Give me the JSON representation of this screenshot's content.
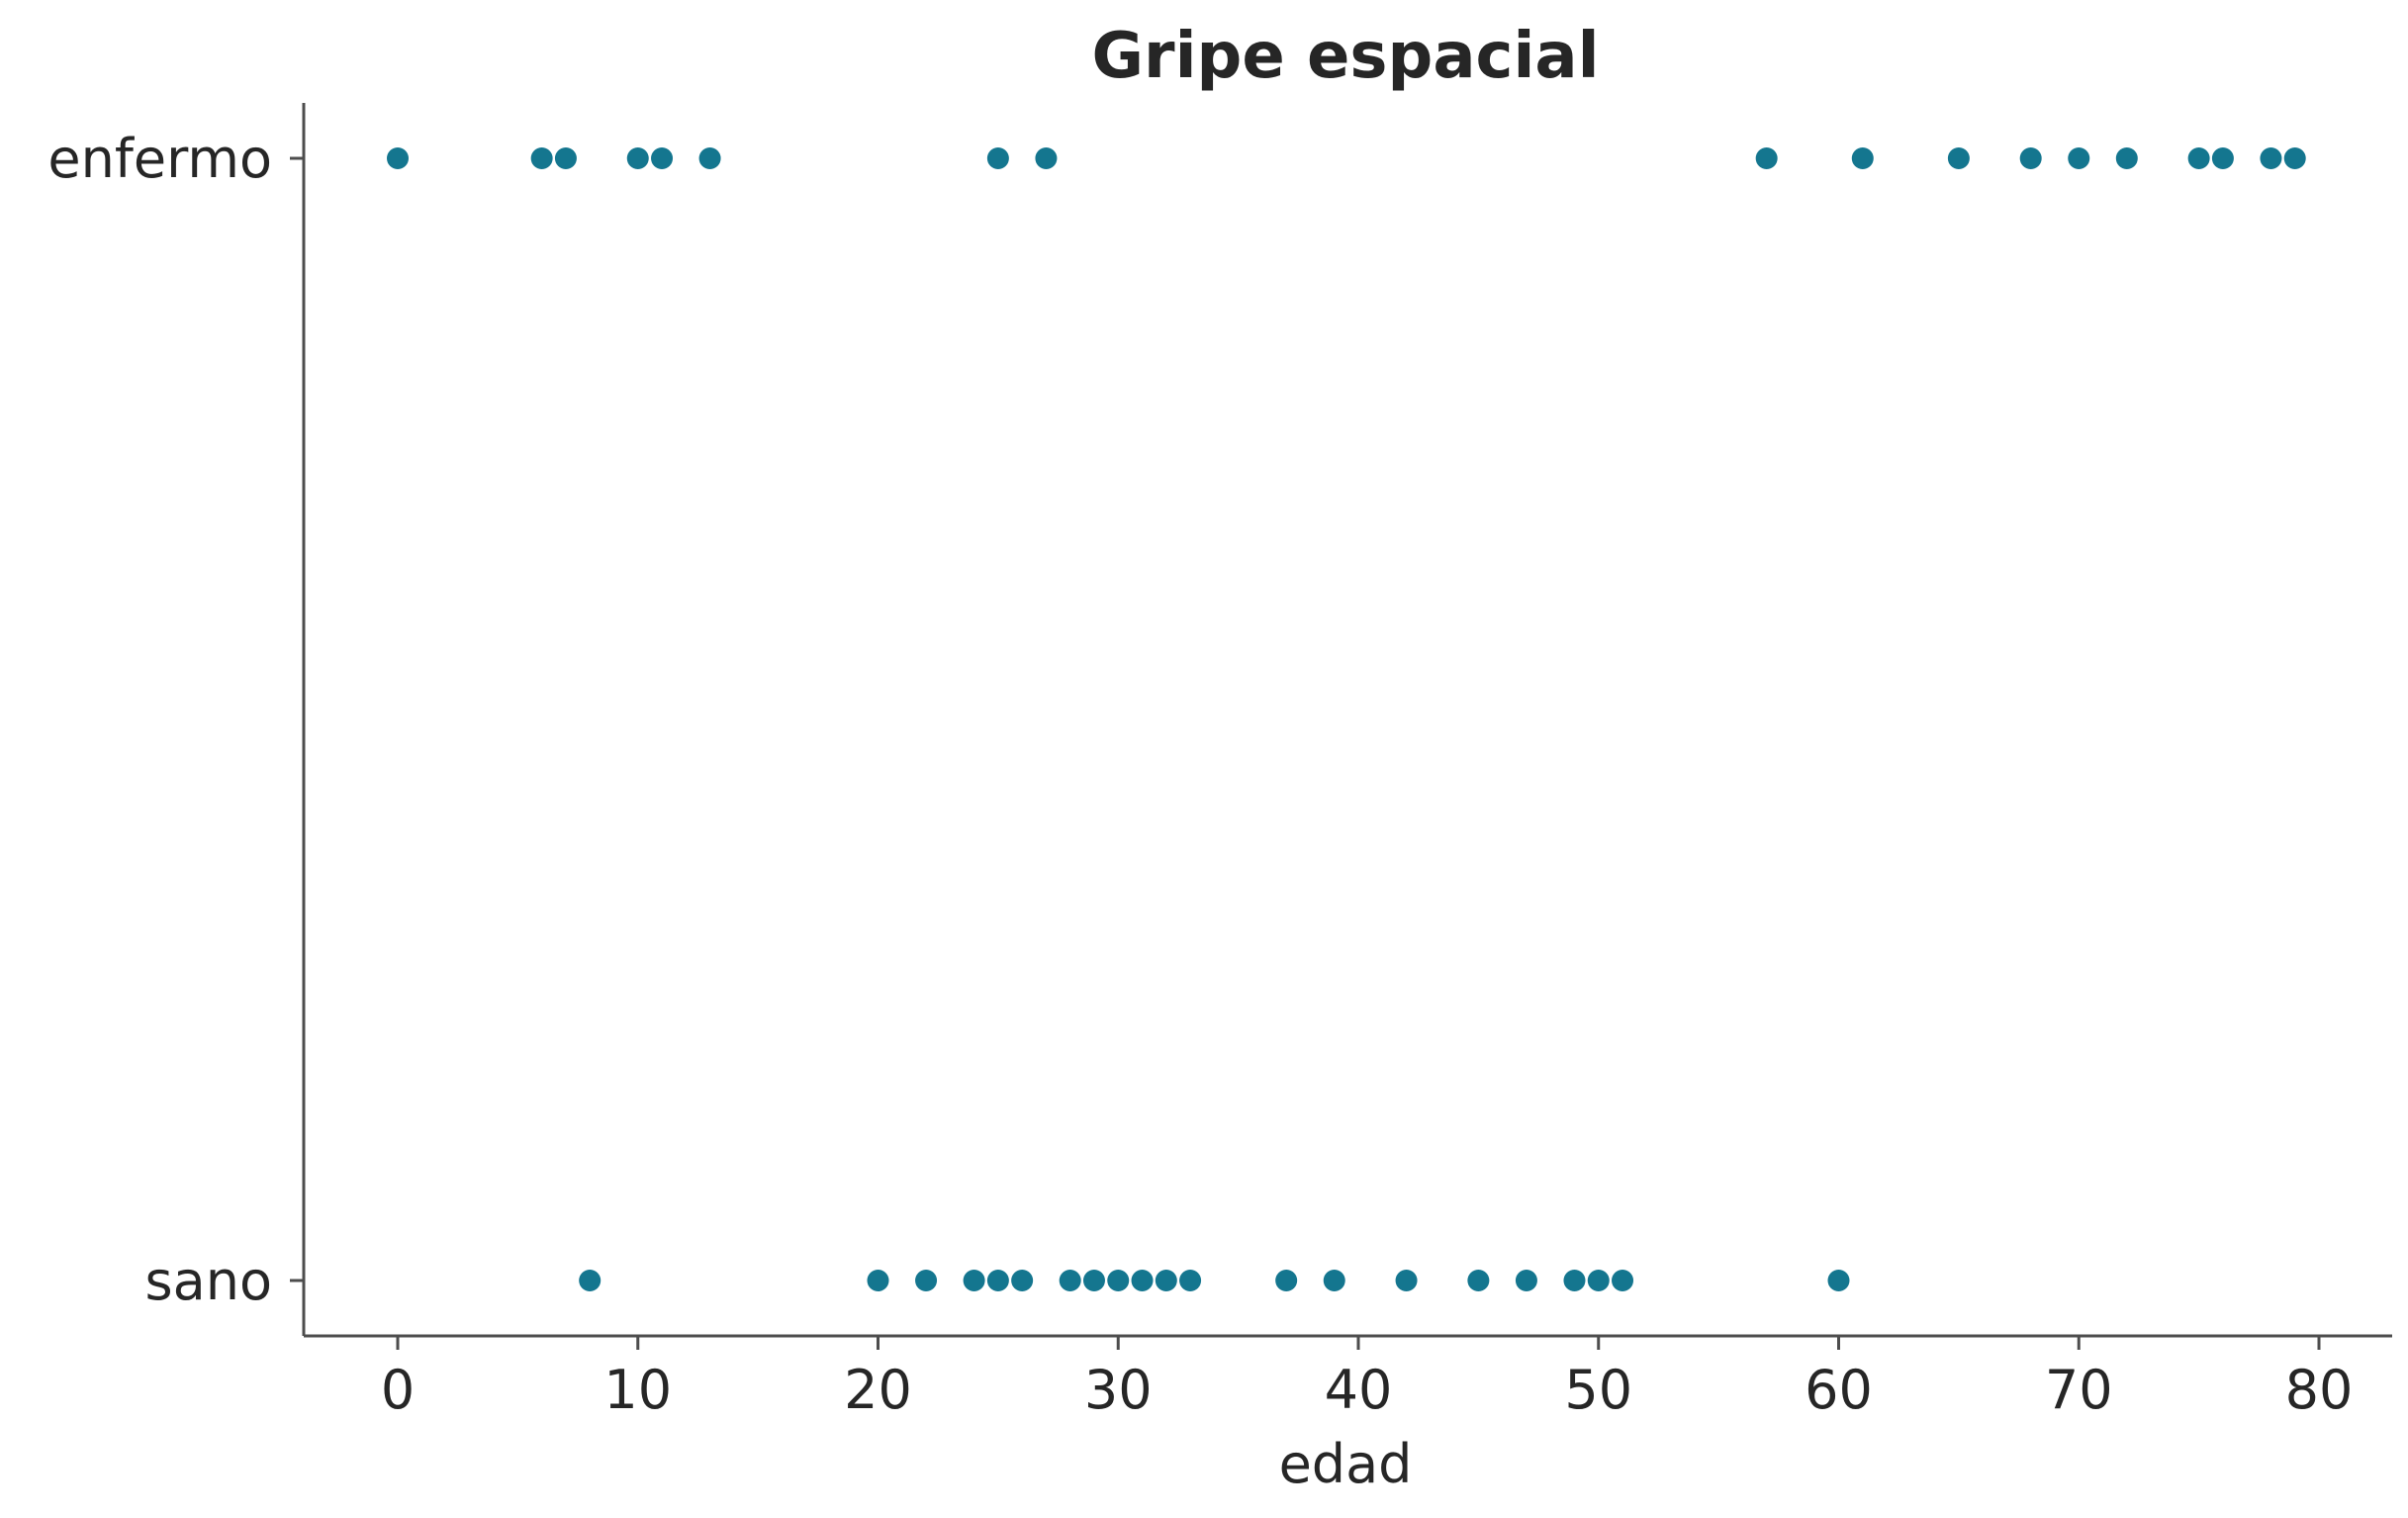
{
  "chart_data": {
    "type": "scatter",
    "title": "Gripe espacial",
    "xlabel": "edad",
    "ylabel": "",
    "xlim": [
      -4,
      83
    ],
    "xticks": [
      0,
      10,
      20,
      30,
      40,
      50,
      60,
      70,
      80
    ],
    "ycategories": [
      "sano",
      "enfermo"
    ],
    "grid": false,
    "marker_color": "#14768f",
    "axis_color": "#4d4d4d",
    "text_color": "#262626",
    "series": [
      {
        "category": "enfermo",
        "x": [
          0,
          6,
          7,
          10,
          11,
          13,
          25,
          27,
          57,
          61,
          65,
          68,
          70,
          72,
          75,
          76,
          78,
          79
        ]
      },
      {
        "category": "sano",
        "x": [
          8,
          20,
          22,
          24,
          25,
          26,
          28,
          29,
          30,
          31,
          32,
          33,
          37,
          39,
          42,
          45,
          47,
          49,
          50,
          51,
          60
        ]
      }
    ]
  }
}
